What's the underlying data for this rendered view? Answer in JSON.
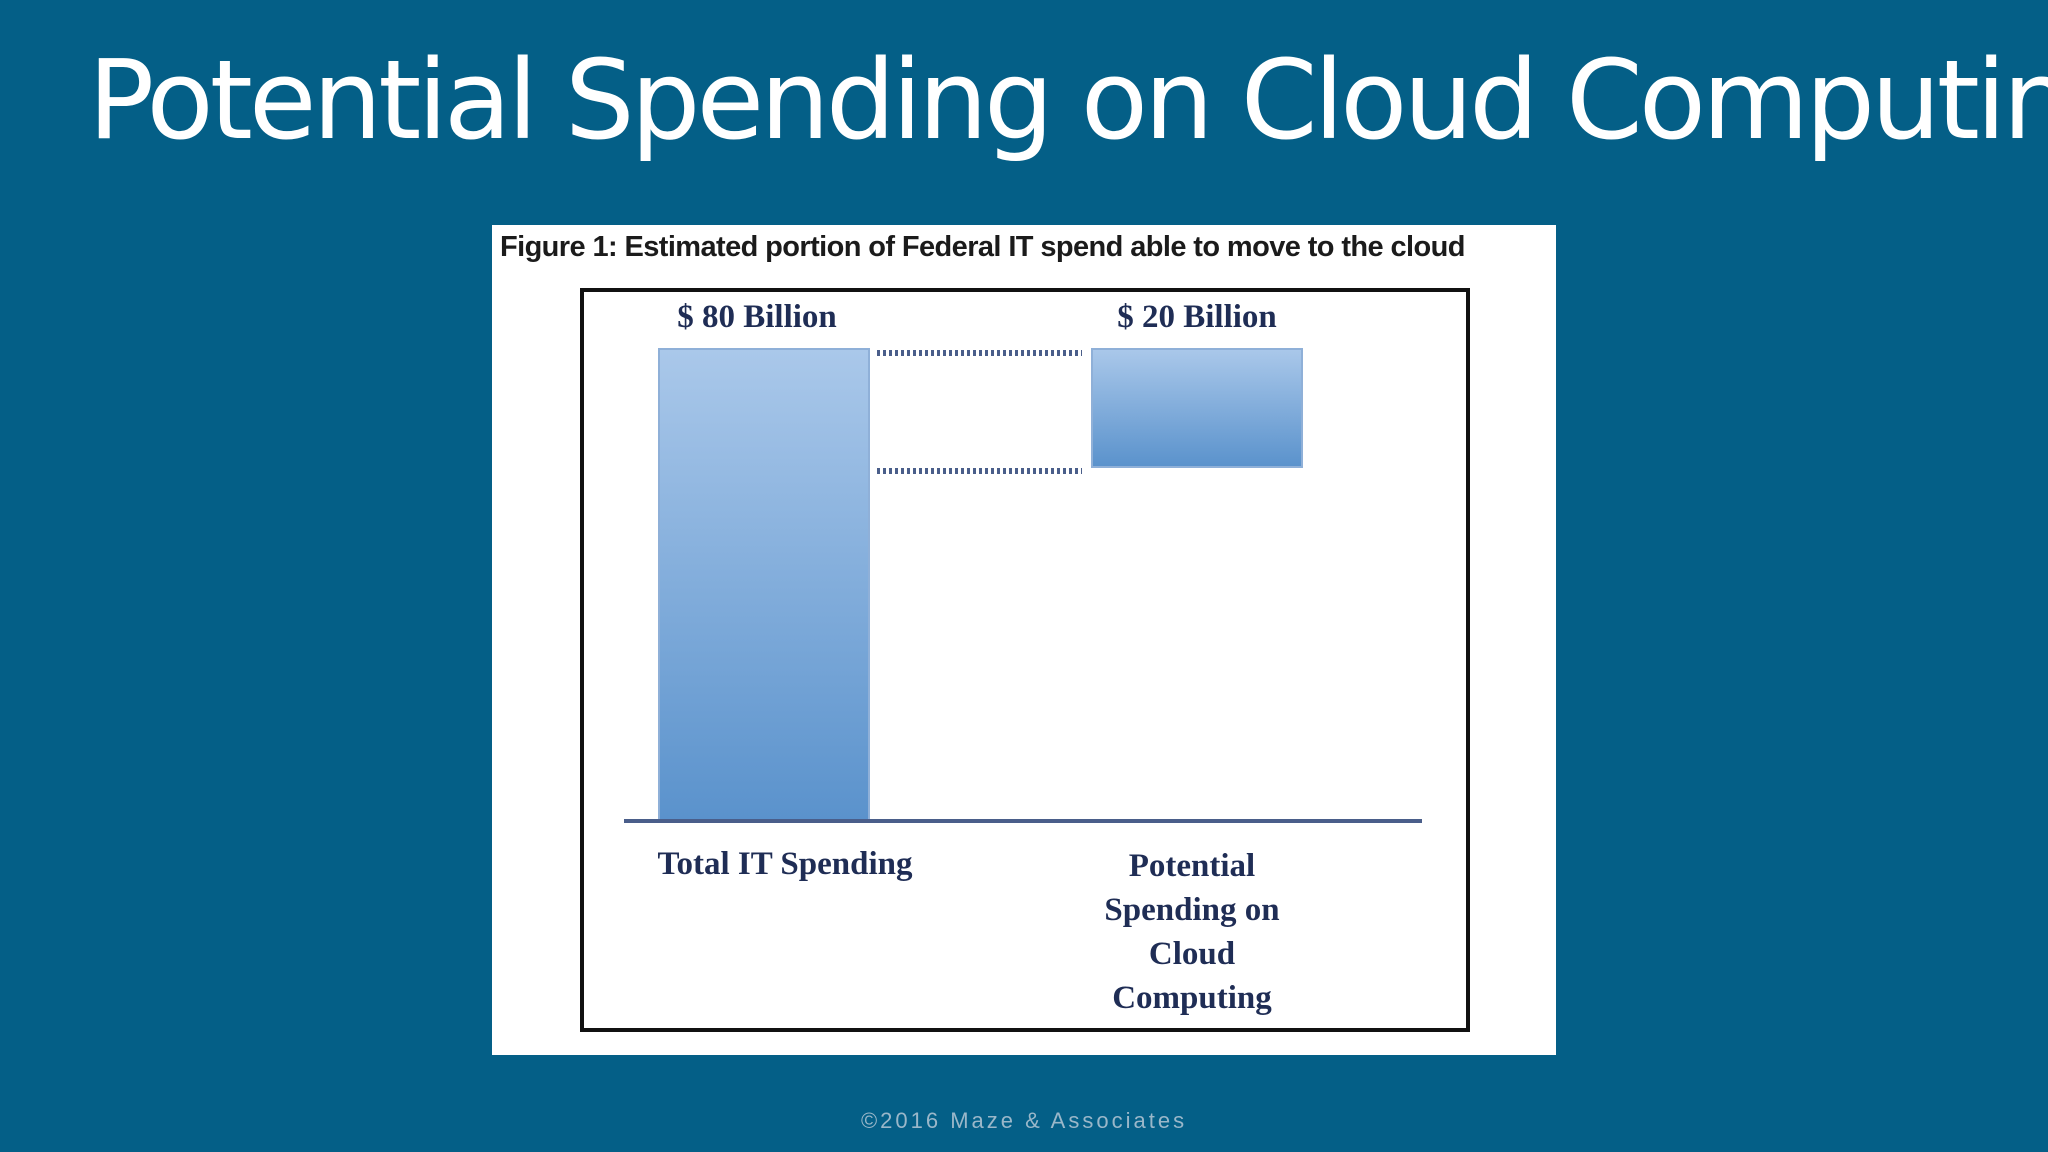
{
  "slide": {
    "title": "Potential Spending on Cloud Computing",
    "footer": "©2016 Maze & Associates"
  },
  "colors": {
    "background": "#045f87",
    "bar_top": "#aac8ea",
    "bar_bottom": "#5a92cc",
    "axis": "#4a5e8a",
    "label_text": "#1f2d55"
  },
  "chart_data": {
    "type": "bar",
    "title": "Figure 1: Estimated portion of Federal IT spend able to move to the cloud",
    "categories": [
      [
        "Total IT Spending"
      ],
      [
        "Potential",
        "Spending on",
        "Cloud",
        "Computing"
      ]
    ],
    "data_labels": [
      "$ 80 Billion",
      "$ 20 Billion"
    ],
    "bars": [
      {
        "start": 0,
        "end": 80
      },
      {
        "start": 60,
        "end": 80
      }
    ],
    "values": [
      80,
      20
    ],
    "unit": "Billion USD",
    "ylim": [
      0,
      80
    ],
    "grid": false,
    "legend": "none",
    "connectors": [
      80,
      60
    ]
  }
}
